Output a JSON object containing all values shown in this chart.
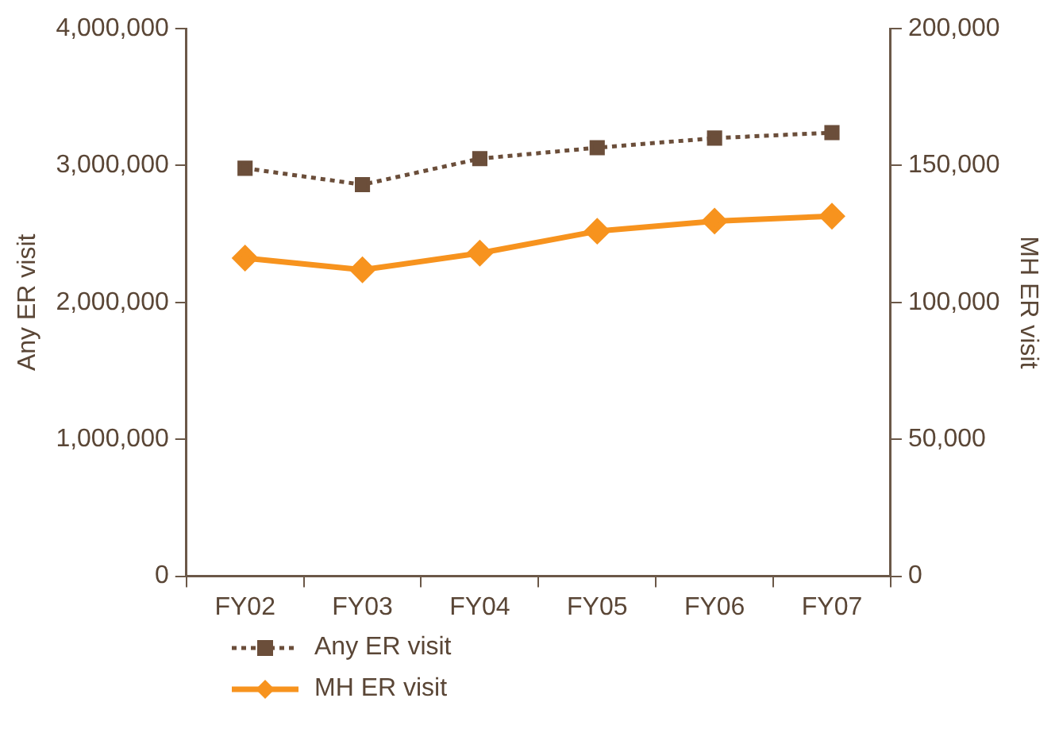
{
  "chart_data": {
    "type": "line",
    "ylabel": "Any ER visit",
    "y2label": "MH ER visit",
    "categories": [
      "FY02",
      "FY03",
      "FY04",
      "FY05",
      "FY06",
      "FY07"
    ],
    "series": [
      {
        "name": "Any ER visit",
        "color": "#6b4e3a",
        "values": [
          2980000,
          2860000,
          3050000,
          3130000,
          3200000,
          3240000
        ],
        "marker": "square",
        "line_style": "dotted"
      },
      {
        "name": "MH ER visit",
        "color": "#f7931e",
        "values": [
          116200,
          111900,
          118000,
          126000,
          129700,
          131500
        ],
        "marker": "diamond",
        "line_style": "solid",
        "axis": "y2"
      }
    ],
    "ylim": [
      0,
      4000000
    ],
    "yticks": [
      {
        "value": 0,
        "label": "0"
      },
      {
        "value": 1000000,
        "label": "1,000,000"
      },
      {
        "value": 2000000,
        "label": "2,000,000"
      },
      {
        "value": 3000000,
        "label": "3,000,000"
      },
      {
        "value": 4000000,
        "label": "4,000,000"
      }
    ],
    "y2lim": [
      0,
      200000
    ],
    "y2ticks": [
      {
        "value": 0,
        "label": "0"
      },
      {
        "value": 50000,
        "label": "50,000"
      },
      {
        "value": 100000,
        "label": "100,000"
      },
      {
        "value": 150000,
        "label": "150,000"
      },
      {
        "value": 200000,
        "label": "200,000"
      }
    ],
    "grid": false,
    "legend": "bottom left"
  }
}
